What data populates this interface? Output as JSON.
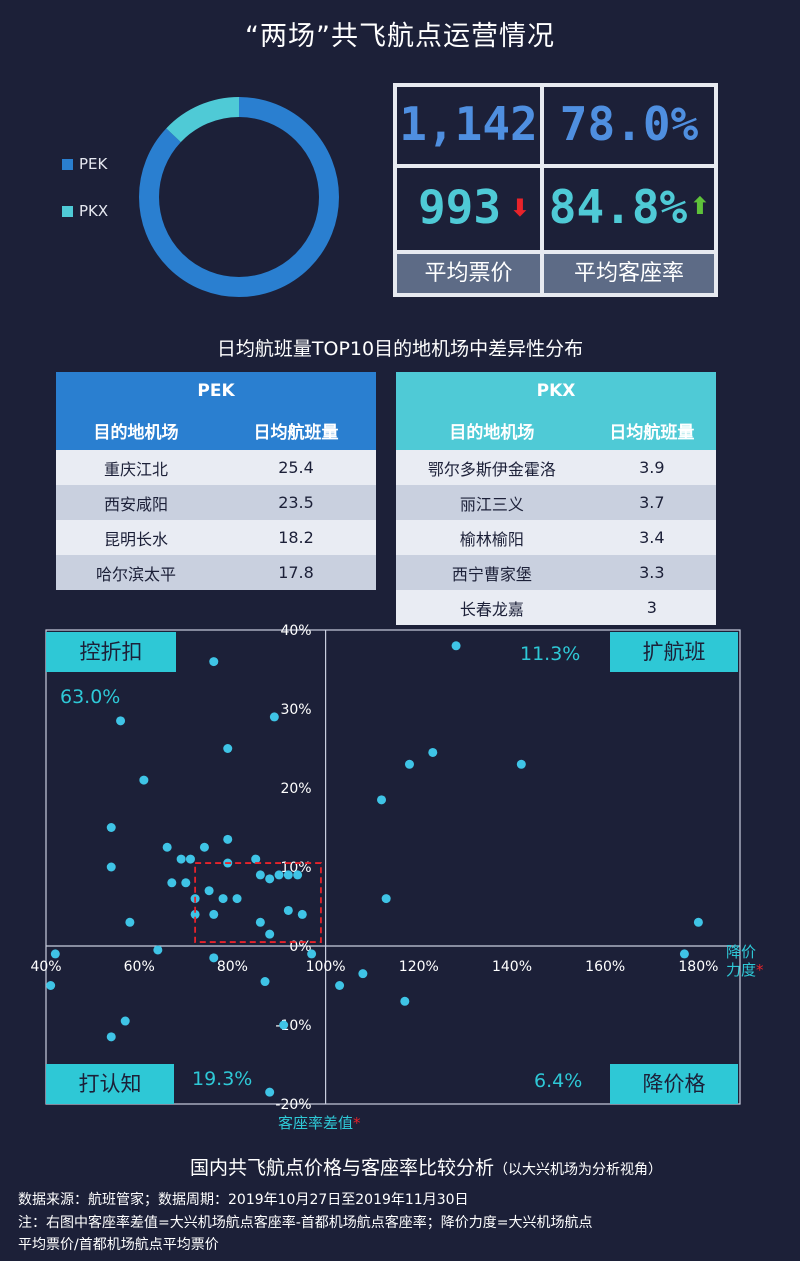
{
  "title": "“两场”共飞航点运营情况",
  "donut": {
    "legend": [
      {
        "name": "PEK",
        "color": "#2a7fd0"
      },
      {
        "name": "PKX",
        "color": "#4fcad6"
      }
    ],
    "shares": [
      0.87,
      0.13
    ]
  },
  "kpi": {
    "pek_price": "1,142",
    "pek_load": "78.0%",
    "pkx_price": "993",
    "pkx_load": "84.8%",
    "label_price": "平均票价",
    "label_load": "平均客座率",
    "price_arrow": "down",
    "load_arrow": "up"
  },
  "tables_title": "日均航班量TOP10目的地机场中差异性分布",
  "pek_table": {
    "caption": "PEK",
    "headers": [
      "目的地机场",
      "日均航班量"
    ],
    "rows": [
      [
        "重庆江北",
        "25.4"
      ],
      [
        "西安咸阳",
        "23.5"
      ],
      [
        "昆明长水",
        "18.2"
      ],
      [
        "哈尔滨太平",
        "17.8"
      ]
    ]
  },
  "pkx_table": {
    "caption": "PKX",
    "headers": [
      "目的地机场",
      "日均航班量"
    ],
    "rows": [
      [
        "鄂尔多斯伊金霍洛",
        "3.9"
      ],
      [
        "丽江三义",
        "3.7"
      ],
      [
        "榆林榆阳",
        "3.4"
      ],
      [
        "西宁曹家堡",
        "3.3"
      ],
      [
        "长春龙嘉",
        "3"
      ]
    ]
  },
  "chart_data": {
    "type": "scatter",
    "x_ticks": [
      "40%",
      "60%",
      "80%",
      "100%",
      "120%",
      "140%",
      "160%",
      "180%"
    ],
    "y_ticks": [
      "40%",
      "30%",
      "20%",
      "10%",
      "0%",
      "-10%",
      "-20%"
    ],
    "xlim": [
      40,
      190
    ],
    "ylim": [
      -20,
      40
    ],
    "x_origin": 100,
    "y_origin": 0,
    "xlabel": "降价力度*",
    "ylabel": "客座率差值*",
    "points": [
      [
        76,
        36
      ],
      [
        56,
        28.5
      ],
      [
        79,
        25
      ],
      [
        61,
        21
      ],
      [
        89,
        29
      ],
      [
        54,
        15
      ],
      [
        54,
        10
      ],
      [
        66,
        12.5
      ],
      [
        69,
        11
      ],
      [
        67,
        8
      ],
      [
        71,
        11
      ],
      [
        79,
        13.5
      ],
      [
        85,
        11
      ],
      [
        86,
        9
      ],
      [
        88,
        8.5
      ],
      [
        90,
        9
      ],
      [
        92,
        9
      ],
      [
        79,
        10.5
      ],
      [
        70,
        8
      ],
      [
        74,
        12.5
      ],
      [
        72,
        6
      ],
      [
        75,
        7
      ],
      [
        78,
        6
      ],
      [
        81,
        6
      ],
      [
        72,
        4
      ],
      [
        76,
        4
      ],
      [
        86,
        3
      ],
      [
        88,
        1.5
      ],
      [
        92,
        4.5
      ],
      [
        94,
        9
      ],
      [
        95,
        4
      ],
      [
        58,
        3
      ],
      [
        64,
        -0.5
      ],
      [
        76,
        -1.5
      ],
      [
        87,
        -4.5
      ],
      [
        91,
        -10
      ],
      [
        57,
        -9.5
      ],
      [
        54,
        -11.5
      ],
      [
        88,
        -18.5
      ],
      [
        42,
        -1
      ],
      [
        41,
        -5
      ],
      [
        97,
        -1
      ],
      [
        103,
        -5
      ],
      [
        108,
        -3.5
      ],
      [
        117,
        -7
      ],
      [
        112,
        18.5
      ],
      [
        118,
        23
      ],
      [
        123,
        24.5
      ],
      [
        142,
        23
      ],
      [
        128,
        38
      ],
      [
        113,
        6
      ],
      [
        177,
        -1
      ],
      [
        180,
        3
      ]
    ],
    "highlight_box": {
      "x": [
        72,
        99
      ],
      "y": [
        0.5,
        10.5
      ]
    },
    "quadrants": [
      {
        "label": "控折扣",
        "pct": "63.0%"
      },
      {
        "label": "扩航班",
        "pct": "11.3%"
      },
      {
        "label": "打认知",
        "pct": "19.3%"
      },
      {
        "label": "降价格",
        "pct": "6.4%"
      }
    ]
  },
  "caption": "国内共飞航点价格与客座率比较分析",
  "caption_sub": "（以大兴机场为分析视角）",
  "notes": {
    "source": "数据来源：航班管家；数据周期：2019年10月27日至2019年11月30日",
    "note1": "注：右图中客座率差值=大兴机场航点客座率-首都机场航点客座率；降价力度=大兴机场航点",
    "note2": "平均票价/首都机场航点平均票价"
  },
  "colors": {
    "bg": "#1c2038",
    "pek_blue": "#2a7fd0",
    "pkx_teal": "#4fcad6",
    "point": "#3fc4e6",
    "down_red": "#e8232a",
    "up_green": "#5ec23a"
  }
}
